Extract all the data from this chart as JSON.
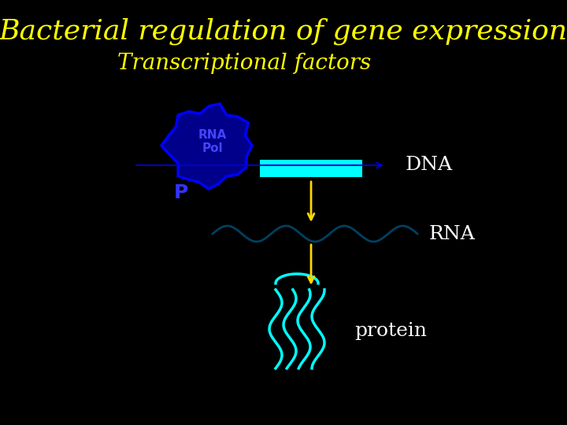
{
  "title": "Bacterial regulation of gene expression",
  "subtitle": "Transcriptional factors",
  "title_color": "#FFFF00",
  "subtitle_color": "#FFFF00",
  "background_color": "#000000",
  "label_dna": "DNA",
  "label_rna": "RNA",
  "label_protein": "protein",
  "label_color": "#FFFFFF",
  "rna_pol_label": "RNA\nPol",
  "rna_pol_label_color": "#4444FF",
  "p_label": "P",
  "p_label_color": "#3333FF",
  "rna_pol_blob_color": "#00008B",
  "rna_pol_edge_color": "#0000FF",
  "dna_line_color": "#00008B",
  "dna_arrow_color": "#0000CD",
  "promoter_box_color": "#00FFFF",
  "arrow_color": "#FFD700",
  "rna_wave_color": "#004060",
  "protein_color": "#00FFFF",
  "title_fontsize": 26,
  "subtitle_fontsize": 20,
  "label_fontsize": 18
}
